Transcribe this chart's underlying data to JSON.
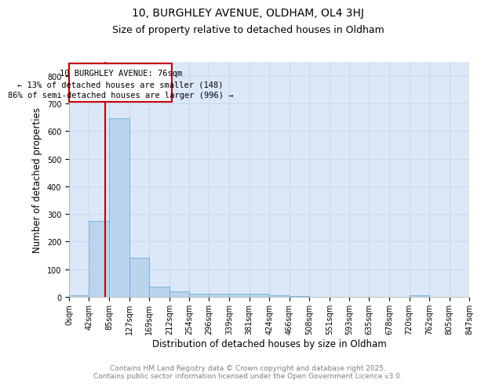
{
  "title": "10, BURGHLEY AVENUE, OLDHAM, OL4 3HJ",
  "subtitle": "Size of property relative to detached houses in Oldham",
  "xlabel": "Distribution of detached houses by size in Oldham",
  "ylabel": "Number of detached properties",
  "bin_edges": [
    0,
    42,
    85,
    127,
    169,
    212,
    254,
    296,
    339,
    381,
    424,
    466,
    508,
    551,
    593,
    635,
    678,
    720,
    762,
    805,
    847
  ],
  "bin_counts": [
    7,
    275,
    645,
    143,
    38,
    20,
    12,
    12,
    12,
    10,
    5,
    4,
    0,
    0,
    0,
    0,
    0,
    5,
    0,
    0
  ],
  "bar_color": "#bad4ee",
  "bar_edge_color": "#6baed6",
  "property_size": 76,
  "annotation_line1": "10 BURGHLEY AVENUE: 76sqm",
  "annotation_line2": "← 13% of detached houses are smaller (148)",
  "annotation_line3": "86% of semi-detached houses are larger (996) →",
  "annotation_box_color": "#cc0000",
  "red_line_color": "#cc0000",
  "ylim": [
    0,
    850
  ],
  "yticks": [
    0,
    100,
    200,
    300,
    400,
    500,
    600,
    700,
    800
  ],
  "grid_color": "#c8d8ee",
  "background_color": "#dce8f8",
  "footer_text": "Contains HM Land Registry data © Crown copyright and database right 2025.\nContains public sector information licensed under the Open Government Licence v3.0.",
  "title_fontsize": 10,
  "subtitle_fontsize": 9,
  "label_fontsize": 8.5,
  "tick_fontsize": 7,
  "annot_fontsize": 7.5,
  "footer_fontsize": 6.5
}
